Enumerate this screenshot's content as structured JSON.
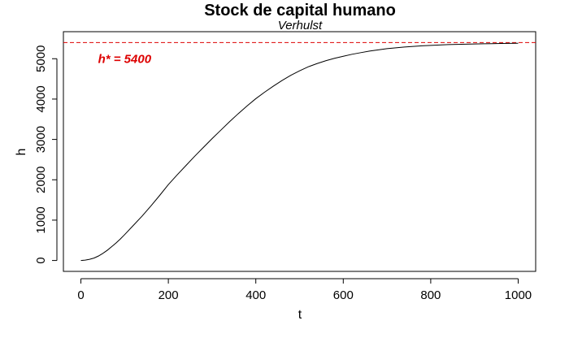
{
  "chart_data": {
    "type": "line",
    "title": "Stock de capital humano",
    "subtitle": "Verhulst",
    "xlabel": "t",
    "ylabel": "h",
    "xlim": [
      -40,
      1040
    ],
    "ylim": [
      -270,
      5670
    ],
    "x_ticks": [
      0,
      200,
      400,
      600,
      800,
      1000
    ],
    "y_ticks": [
      0,
      1000,
      2000,
      3000,
      4000,
      5000
    ],
    "grid": false,
    "legend": "none",
    "series": [
      {
        "color": "#000000",
        "x": [
          0,
          10,
          20,
          30,
          40,
          50,
          60,
          70,
          80,
          90,
          100,
          120,
          140,
          160,
          180,
          200,
          220,
          240,
          260,
          280,
          300,
          320,
          340,
          360,
          380,
          400,
          420,
          440,
          460,
          480,
          500,
          520,
          540,
          560,
          580,
          600,
          620,
          640,
          660,
          680,
          700,
          720,
          740,
          760,
          780,
          800,
          820,
          840,
          860,
          880,
          900,
          920,
          940,
          960,
          980,
          1000
        ],
        "y": [
          0,
          10,
          30,
          60,
          110,
          175,
          250,
          340,
          430,
          530,
          640,
          870,
          1100,
          1350,
          1610,
          1880,
          2120,
          2350,
          2580,
          2800,
          3020,
          3230,
          3440,
          3640,
          3830,
          4010,
          4170,
          4320,
          4460,
          4590,
          4700,
          4800,
          4880,
          4950,
          5010,
          5060,
          5110,
          5150,
          5190,
          5220,
          5250,
          5270,
          5290,
          5305,
          5320,
          5330,
          5340,
          5350,
          5355,
          5360,
          5365,
          5370,
          5374,
          5377,
          5380,
          5383
        ]
      }
    ],
    "hline": {
      "y": 5400,
      "color": "#dd0000",
      "style": "dashed"
    },
    "annotation": {
      "text": "h* = 5400",
      "x": 100,
      "y": 5000,
      "color": "#dd0000"
    }
  }
}
